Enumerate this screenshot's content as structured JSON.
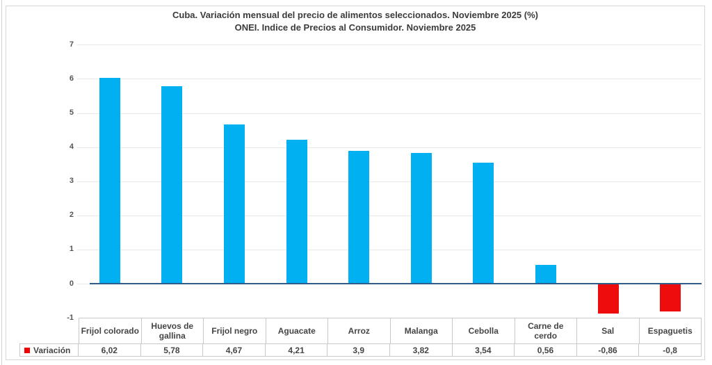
{
  "chart": {
    "title_line1": "Cuba. Variación mensual del precio de alimentos seleccionados. Noviembre 2025 (%)",
    "title_line2": "ONEI. Indice de Precios al Consumidor. Noviembre 2025",
    "legend_label": "Variación"
  },
  "chart_data": {
    "type": "bar",
    "title": "Cuba. Variación mensual del precio de alimentos seleccionados. Noviembre 2025 (%)",
    "subtitle": "ONEI. Indice de Precios al Consumidor. Noviembre 2025",
    "categories": [
      "Frijol colorado",
      "Huevos de gallina",
      "Frijol negro",
      "Aguacate",
      "Arroz",
      "Malanga",
      "Cebolla",
      "Carne de cerdo",
      "Sal",
      "Espaguetis"
    ],
    "series": [
      {
        "name": "Variación",
        "values": [
          6.02,
          5.78,
          4.67,
          4.21,
          3.9,
          3.82,
          3.54,
          0.56,
          -0.86,
          -0.8
        ]
      }
    ],
    "value_labels": [
      "6,02",
      "5,78",
      "4,67",
      "4,21",
      "3,9",
      "3,82",
      "3,54",
      "0,56",
      "-0,86",
      "-0,8"
    ],
    "xlabel": "",
    "ylabel": "",
    "ylim": [
      -1,
      7
    ],
    "yticks": [
      7,
      6,
      5,
      4,
      3,
      2,
      1,
      0,
      -1
    ],
    "grid": true,
    "legend_position": "bottom-left",
    "table_shown": true,
    "colors": {
      "positive_bar": "#00b0f0",
      "negative_bar": "#ee0c0c",
      "zero_line": "#2e5c8a",
      "legend_swatch": "#f00000"
    }
  }
}
